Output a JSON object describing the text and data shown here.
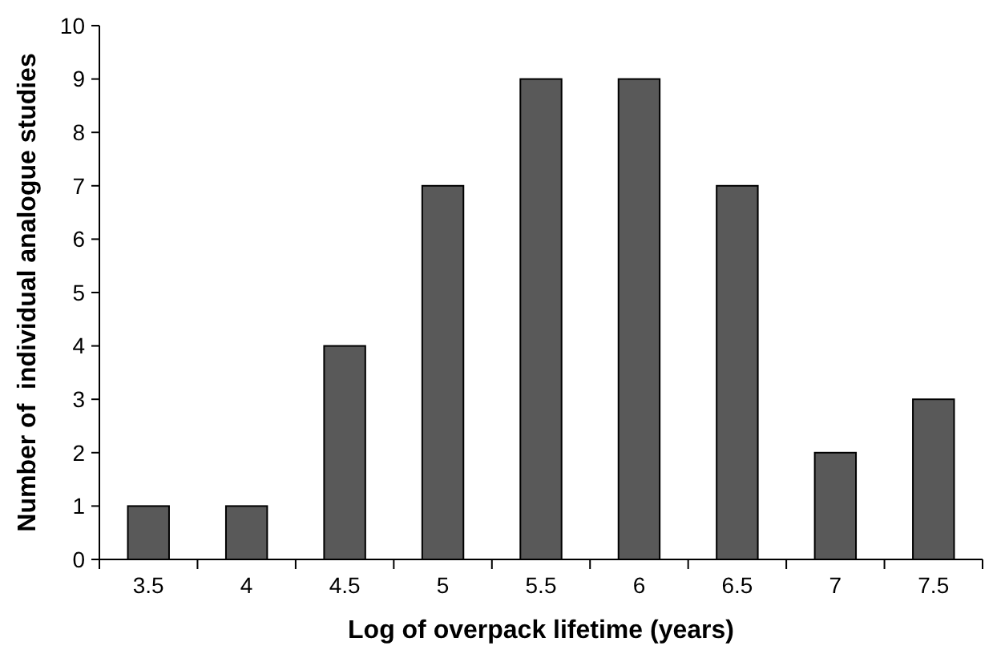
{
  "chart_data": {
    "type": "bar",
    "xlabel": "Log of overpack lifetime (years)",
    "ylabel": "Number of  individual analogue studies",
    "categories": [
      "3.5",
      "4",
      "4.5",
      "5",
      "5.5",
      "6",
      "6.5",
      "7",
      "7.5"
    ],
    "values": [
      1,
      1,
      4,
      7,
      9,
      9,
      7,
      2,
      3
    ],
    "color": "#595959",
    "ylim": [
      0,
      10
    ],
    "yticks": [
      0,
      1,
      2,
      3,
      4,
      5,
      6,
      7,
      8,
      9,
      10
    ],
    "grid": false
  }
}
